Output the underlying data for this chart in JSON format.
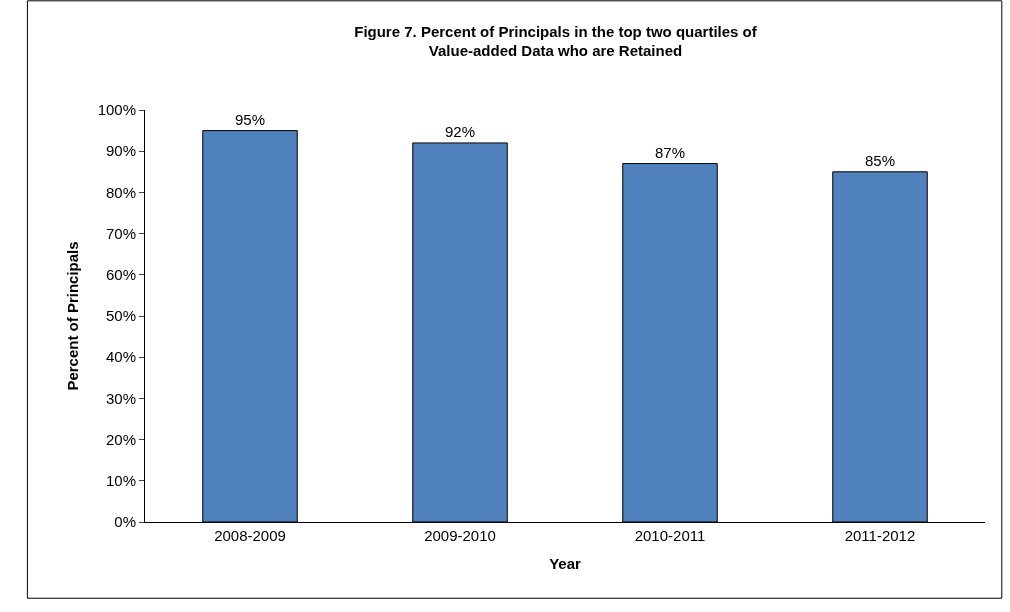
{
  "chart_data": {
    "type": "bar",
    "title": "Figure 7. Percent of Principals in the top two quartiles of\nValue-added Data who are Retained",
    "xlabel": "Year",
    "ylabel": "Percent of Principals",
    "categories": [
      "2008-2009",
      "2009-2010",
      "2010-2011",
      "2011-2012"
    ],
    "values": [
      95,
      92,
      87,
      85
    ],
    "value_labels": [
      "95%",
      "92%",
      "87%",
      "85%"
    ],
    "color": "#4f81bd",
    "ylim": [
      0,
      100
    ],
    "yticks": [
      {
        "value": 0,
        "label": "0%"
      },
      {
        "value": 10,
        "label": "10%"
      },
      {
        "value": 20,
        "label": "20%"
      },
      {
        "value": 30,
        "label": "30%"
      },
      {
        "value": 40,
        "label": "40%"
      },
      {
        "value": 50,
        "label": "50%"
      },
      {
        "value": 60,
        "label": "60%"
      },
      {
        "value": 70,
        "label": "70%"
      },
      {
        "value": 80,
        "label": "80%"
      },
      {
        "value": 90,
        "label": "90%"
      },
      {
        "value": 100,
        "label": "100%"
      }
    ],
    "legend": false
  }
}
